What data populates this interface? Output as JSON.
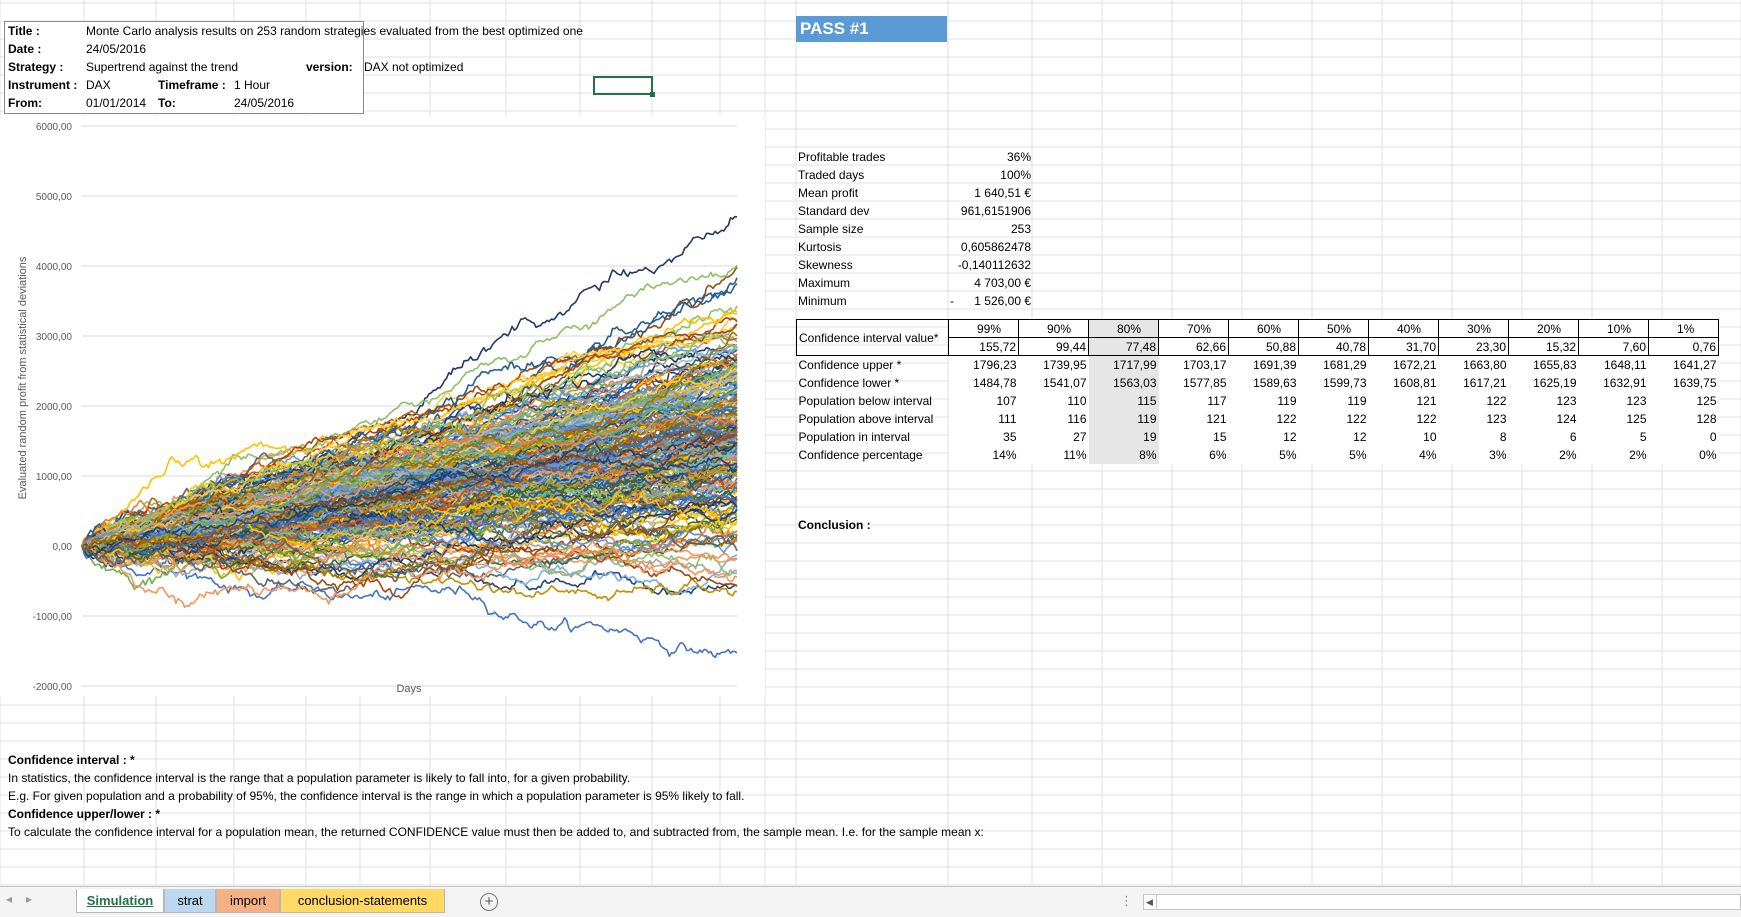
{
  "header": {
    "title_label": "Title :",
    "title_value": "Monte Carlo analysis results on 253 random strategies evaluated from the best optimized one",
    "date_label": "Date :",
    "date_value": "24/05/2016",
    "strategy_label": "Strategy :",
    "strategy_value": "Supertrend against the trend",
    "version_label": "version:",
    "version_value": "DAX not optimized",
    "instrument_label": "Instrument :",
    "instrument_value": "DAX",
    "timeframe_label": "Timeframe :",
    "timeframe_value": "1 Hour",
    "from_label": "From:",
    "from_value": "01/01/2014",
    "to_label": "To:",
    "to_value": "24/05/2016"
  },
  "pass_title": "PASS #1",
  "stats": [
    {
      "label": "Profitable trades",
      "value": "36%"
    },
    {
      "label": "Traded days",
      "value": "100%"
    },
    {
      "label": "Mean profit",
      "value": "1 640,51 €"
    },
    {
      "label": "Standard dev",
      "value": "961,6151906"
    },
    {
      "label": "Sample size",
      "value": "253"
    },
    {
      "label": "Kurtosis",
      "value": "0,605862478"
    },
    {
      "label": "Skewness",
      "value": "-0,140112632"
    },
    {
      "label": "Maximum",
      "value": "4 703,00 €"
    },
    {
      "label": "Minimum",
      "value": "1 526,00 €",
      "prefix": "-"
    }
  ],
  "ci_table": {
    "header_label": "Confidence interval value*",
    "levels": [
      "99%",
      "90%",
      "80%",
      "70%",
      "60%",
      "50%",
      "40%",
      "30%",
      "20%",
      "10%",
      "1%"
    ],
    "values": [
      "155,72",
      "99,44",
      "77,48",
      "62,66",
      "50,88",
      "40,78",
      "31,70",
      "23,30",
      "15,32",
      "7,60",
      "0,76"
    ],
    "rows": [
      {
        "label": "Confidence upper *",
        "cells": [
          "1796,23",
          "1739,95",
          "1717,99",
          "1703,17",
          "1691,39",
          "1681,29",
          "1672,21",
          "1663,80",
          "1655,83",
          "1648,11",
          "1641,27"
        ]
      },
      {
        "label": "Confidence lower *",
        "cells": [
          "1484,78",
          "1541,07",
          "1563,03",
          "1577,85",
          "1589,63",
          "1599,73",
          "1608,81",
          "1617,21",
          "1625,19",
          "1632,91",
          "1639,75"
        ]
      },
      {
        "label": "Population below interval",
        "cells": [
          "107",
          "110",
          "115",
          "117",
          "119",
          "119",
          "121",
          "122",
          "123",
          "123",
          "125"
        ]
      },
      {
        "label": "Population above interval",
        "cells": [
          "111",
          "116",
          "119",
          "121",
          "122",
          "122",
          "122",
          "123",
          "124",
          "125",
          "128"
        ]
      },
      {
        "label": "Population in interval",
        "cells": [
          "35",
          "27",
          "19",
          "15",
          "12",
          "12",
          "10",
          "8",
          "6",
          "5",
          "0"
        ]
      },
      {
        "label": "Confidence percentage",
        "cells": [
          "14%",
          "11%",
          "8%",
          "6%",
          "5%",
          "5%",
          "4%",
          "3%",
          "2%",
          "2%",
          "0%"
        ]
      }
    ],
    "highlight_index": 2
  },
  "conclusion_label": "Conclusion :",
  "notes": {
    "ci_heading": "Confidence interval : *",
    "ci_line1": "In statistics, the confidence interval is the range that a population parameter is likely to fall into, for a given probability.",
    "ci_line2": "E.g. For given population and a probability of 95%, the confidence interval is the range in which a population parameter is 95% likely to fall.",
    "ul_heading": "Confidence upper/lower : *",
    "ul_line1": "To calculate the confidence interval for a population mean, the returned CONFIDENCE value must then be added to, and subtracted from, the sample mean. I.e. for the sample mean x:"
  },
  "chart_data": {
    "type": "line",
    "title": "",
    "xlabel": "Days",
    "ylabel": "Evaluated random profit from statistical deviations",
    "ylim": [
      -2000,
      6000
    ],
    "y_ticks": [
      "6000,00",
      "5000,00",
      "4000,00",
      "3000,00",
      "2000,00",
      "1000,00",
      "0,00",
      "-1000,00",
      "-2000,00"
    ],
    "series_count": 253,
    "start_value": 0,
    "maximum_final": 4703,
    "minimum_final": -1526,
    "mean_final": 1640.51,
    "std_final": 961.6151906,
    "legend": "none",
    "grid": true
  },
  "sheets": {
    "tabs": [
      "Simulation",
      "strat",
      "import",
      "conclusion-statements"
    ],
    "active": "Simulation",
    "tab_colors": {
      "strat": "#bdd7ee",
      "import": "#f4b183",
      "conclusion-statements": "#ffd966"
    }
  },
  "palette": [
    "#1f3a6b",
    "#4472c4",
    "#ed7d31",
    "#a5a5a5",
    "#ffc000",
    "#5b9bd5",
    "#70ad47",
    "#264478",
    "#9e480e",
    "#636363",
    "#997300",
    "#255e91",
    "#43682b",
    "#698ed0",
    "#f1975a",
    "#b7b7b7",
    "#ffcd33",
    "#7cafdd",
    "#8cc168",
    "#c55a11",
    "#2e75b6",
    "#bf9000"
  ]
}
